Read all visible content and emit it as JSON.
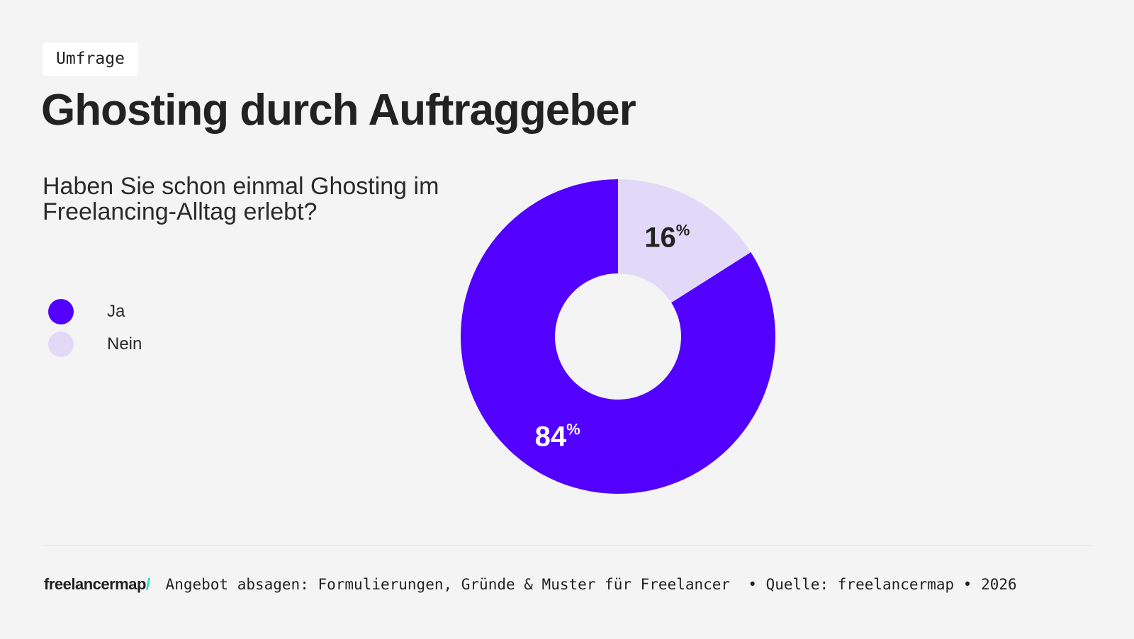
{
  "tag": "Umfrage",
  "title": "Ghosting durch Auftraggeber",
  "chart_data": {
    "type": "pie",
    "variant": "donut",
    "title": "Haben Sie schon einmal Ghosting im Freelancing-Alltag erlebt?",
    "categories": [
      "Ja",
      "Nein"
    ],
    "values": [
      84,
      16
    ],
    "labels": [
      "84",
      "16"
    ],
    "unit": "%",
    "colors": [
      "#5200ff",
      "#e2d9f8"
    ],
    "label_colors": [
      "#ffffff",
      "#222222"
    ],
    "legend_position": "left"
  },
  "footer": {
    "logo": "freelancermap",
    "logo_slash": "/",
    "text": "Angebot absagen: Formulierungen, Gründe & Muster für Freelancer  • Quelle: freelancermap • 2026"
  }
}
